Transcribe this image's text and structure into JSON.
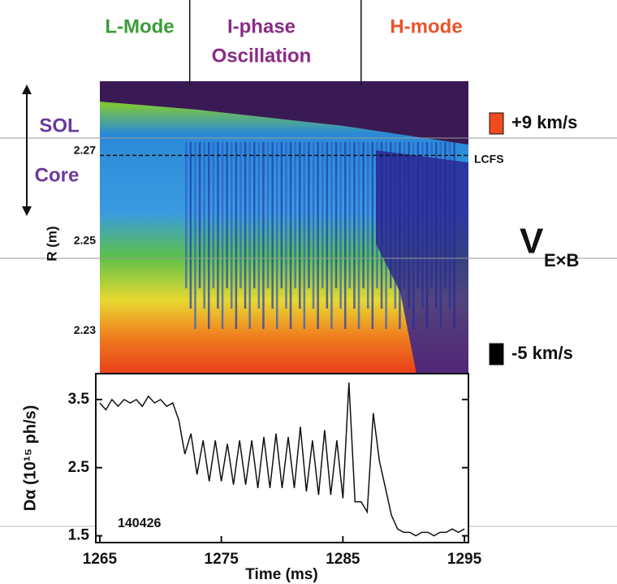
{
  "chart_data": [
    {
      "type": "heatmap",
      "phase_labels": [
        [
          "L-Mode"
        ],
        [
          "I-phase",
          "Oscillation"
        ],
        [
          "H-mode"
        ]
      ],
      "phase_colors": [
        "#3d9b3a",
        "#8a2a86",
        "#e8542a"
      ],
      "phase_boundaries": [
        1272.4,
        1286.5
      ],
      "region_labels": [
        "SOL",
        "Core"
      ],
      "region_color": "#6a3a9a",
      "lcfs_label": "LCFS",
      "lcfs_r": 2.269,
      "ylabel": "R (m)",
      "ylim": [
        2.2205,
        2.2855
      ],
      "yticks": [
        2.27,
        2.25,
        2.23
      ],
      "xlim": [
        1264.67,
        1295.33
      ],
      "colorbar_ticks": [
        {
          "value": 9,
          "label": "+9 km/s"
        },
        {
          "value": -5,
          "label": "-5 km/s"
        }
      ],
      "colorbar_colors": [
        "#f04a1e",
        "#000000"
      ],
      "colorbar_label": "V",
      "colorbar_label_sub": "E×B"
    },
    {
      "type": "line",
      "ylabel": "Dα (10¹⁵ ph/s)",
      "xlabel": "Time (ms)",
      "annotation": "140426",
      "xlim": [
        1264.67,
        1295.33
      ],
      "ylim": [
        1.4,
        3.88
      ],
      "xticks": [
        1265,
        1275,
        1285,
        1295
      ],
      "yticks": [
        1.5,
        2.5,
        3.5
      ],
      "color": "#111111",
      "x": [
        1265,
        1265.5,
        1266,
        1266.5,
        1267,
        1267.5,
        1268,
        1268.5,
        1269,
        1269.5,
        1270,
        1270.5,
        1271,
        1271.5,
        1272,
        1272.5,
        1273,
        1273.5,
        1274,
        1274.5,
        1275,
        1275.5,
        1276,
        1276.5,
        1277,
        1277.5,
        1278,
        1278.5,
        1279,
        1279.5,
        1280,
        1280.5,
        1281,
        1281.5,
        1282,
        1282.5,
        1283,
        1283.5,
        1284,
        1284.5,
        1285,
        1285.5,
        1286,
        1286.5,
        1287,
        1287.5,
        1288,
        1288.5,
        1289,
        1289.5,
        1290,
        1290.5,
        1291,
        1291.5,
        1292,
        1292.5,
        1293,
        1293.5,
        1294,
        1294.5,
        1295
      ],
      "values": [
        3.45,
        3.35,
        3.5,
        3.4,
        3.5,
        3.45,
        3.5,
        3.4,
        3.55,
        3.45,
        3.5,
        3.4,
        3.45,
        3.2,
        2.7,
        3.0,
        2.4,
        2.9,
        2.3,
        2.9,
        2.3,
        2.85,
        2.25,
        2.9,
        2.25,
        2.9,
        2.2,
        2.95,
        2.2,
        3.0,
        2.2,
        2.95,
        2.2,
        3.1,
        2.15,
        2.9,
        2.1,
        3.05,
        2.1,
        2.9,
        2.05,
        3.75,
        2.0,
        2.0,
        1.85,
        3.3,
        2.6,
        2.2,
        1.8,
        1.6,
        1.55,
        1.55,
        1.5,
        1.55,
        1.55,
        1.5,
        1.55,
        1.55,
        1.6,
        1.55,
        1.6
      ]
    }
  ]
}
